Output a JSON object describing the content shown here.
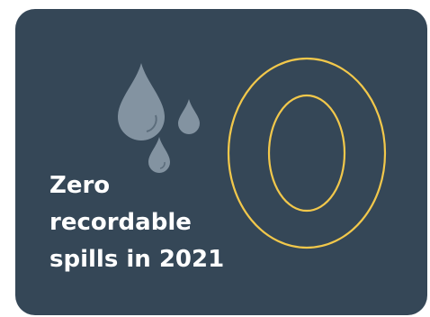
{
  "stat": {
    "big_number": "0",
    "headline_lines": [
      "Zero",
      "recordable",
      "spills in 2021"
    ]
  },
  "icons": {
    "drops": "water-drops-icon"
  },
  "colors": {
    "card_background": "#354757",
    "number_outline": "#f2c84b",
    "drop_fill": "#8393a1",
    "headline_text": "#ffffff"
  }
}
